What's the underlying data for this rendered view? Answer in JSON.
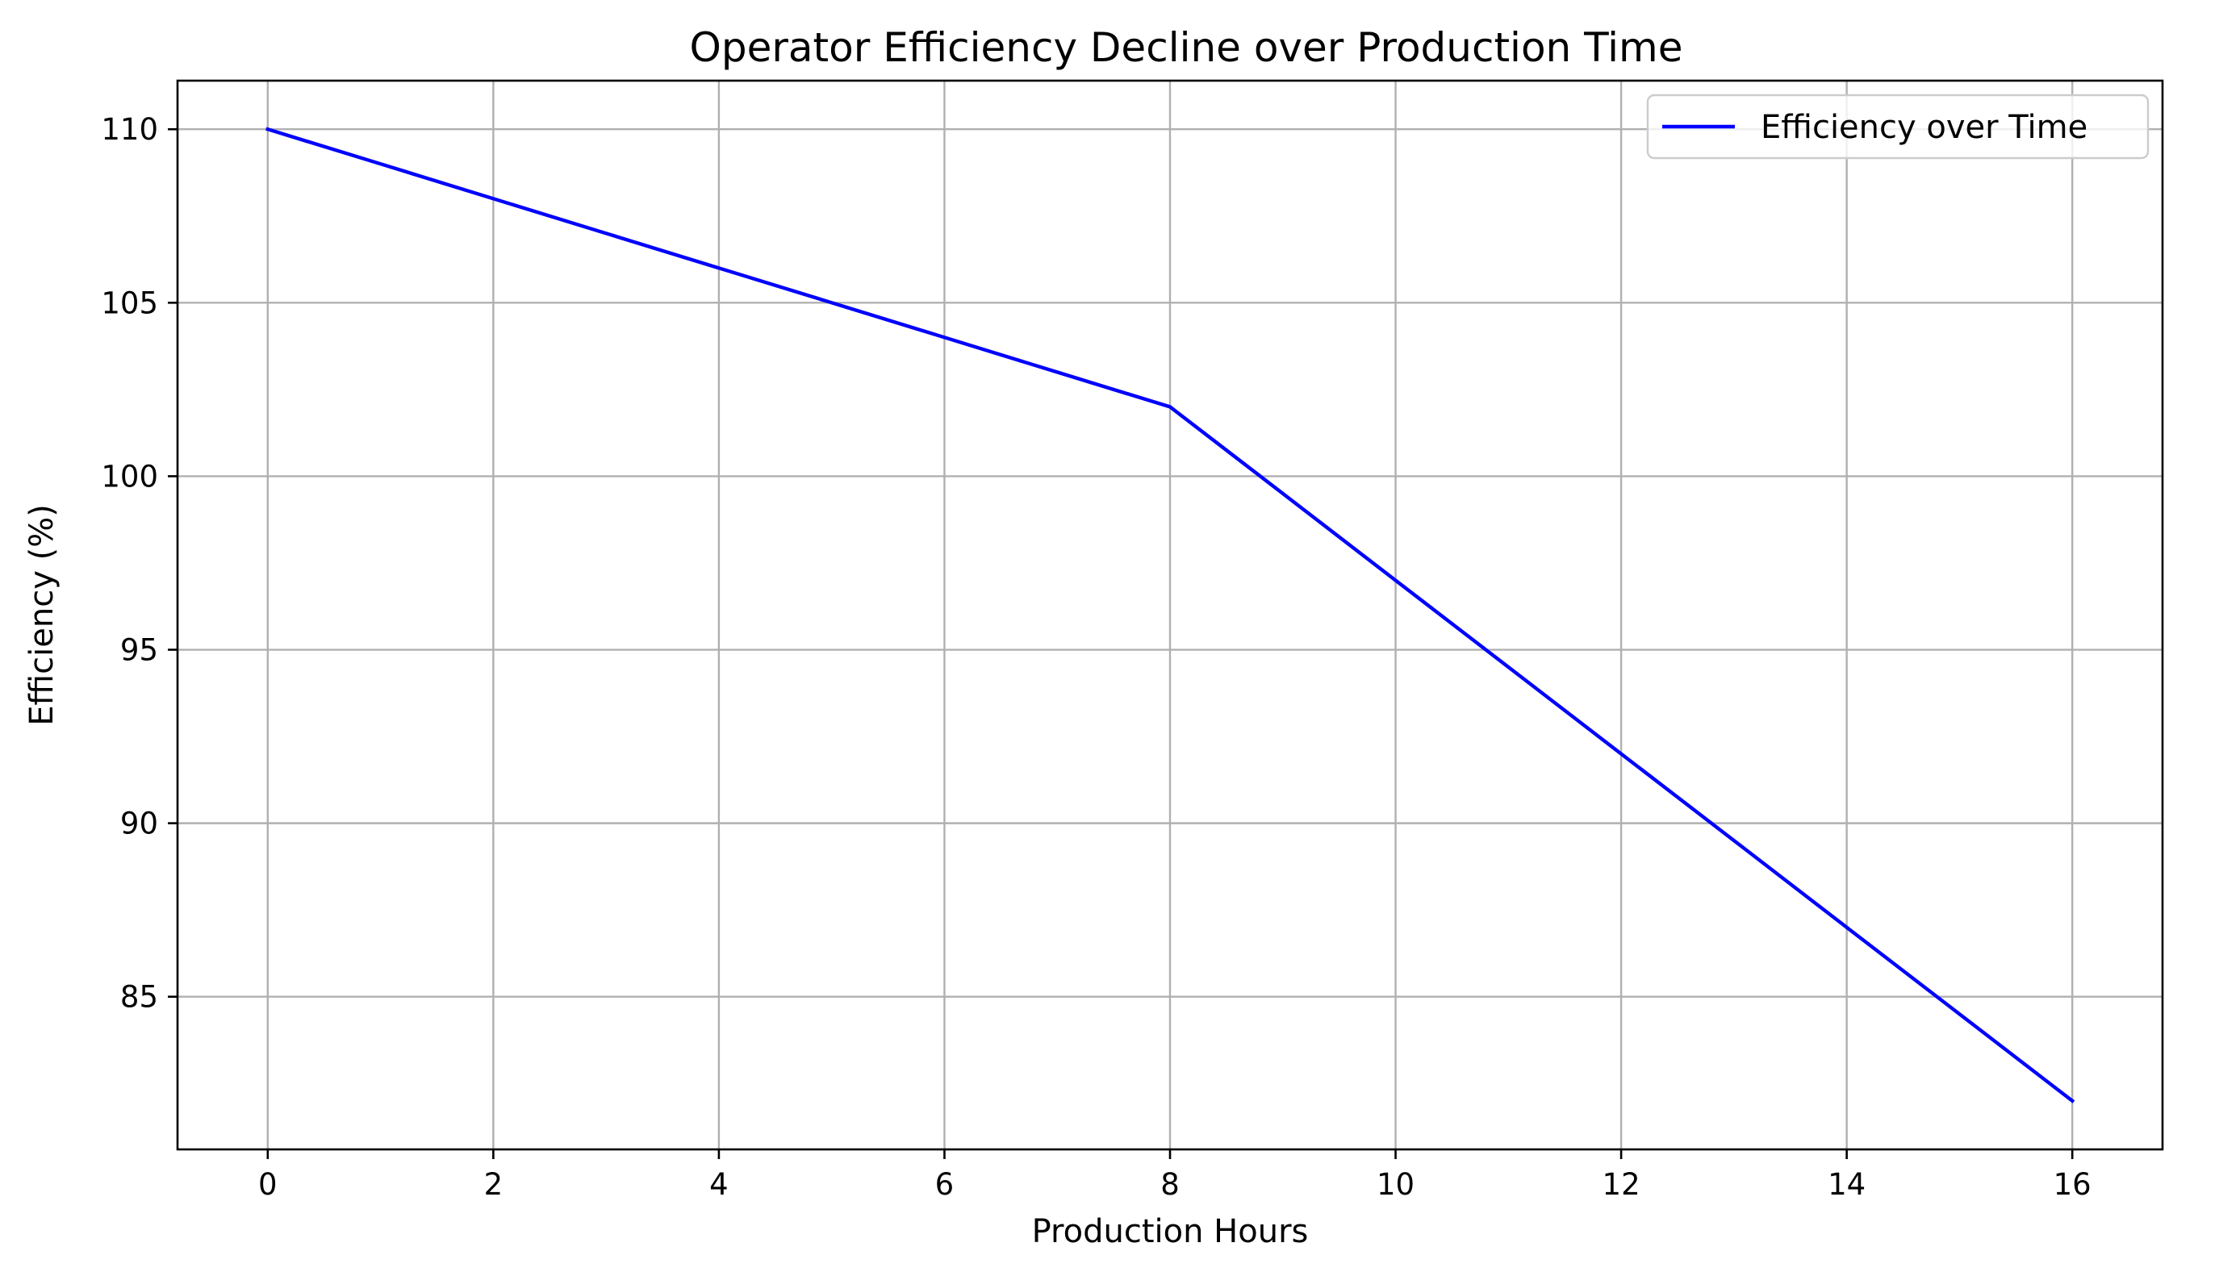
{
  "chart_data": {
    "type": "line",
    "title": "Operator Efficiency Decline over Production Time",
    "xlabel": "Production Hours",
    "ylabel": "Efficiency (%)",
    "xlim": [
      -0.8,
      16.8
    ],
    "ylim": [
      80.6,
      111.4
    ],
    "xticks": [
      0,
      2,
      4,
      6,
      8,
      10,
      12,
      14,
      16
    ],
    "xtick_labels": [
      "0",
      "2",
      "4",
      "6",
      "8",
      "10",
      "12",
      "14",
      "16"
    ],
    "yticks": [
      85,
      90,
      95,
      100,
      105,
      110
    ],
    "ytick_labels": [
      "85",
      "90",
      "95",
      "100",
      "105",
      "110"
    ],
    "grid": true,
    "legend_position": "top-right",
    "series": [
      {
        "name": "Efficiency over Time",
        "color": "#0000ff",
        "x": [
          0,
          1,
          2,
          3,
          4,
          5,
          6,
          7,
          8,
          9,
          10,
          11,
          12,
          13,
          14,
          15,
          16
        ],
        "y": [
          110,
          109,
          108,
          107,
          106,
          105,
          104,
          103,
          102,
          99.5,
          97,
          94.5,
          92,
          89.5,
          87,
          84.5,
          82
        ]
      }
    ]
  }
}
